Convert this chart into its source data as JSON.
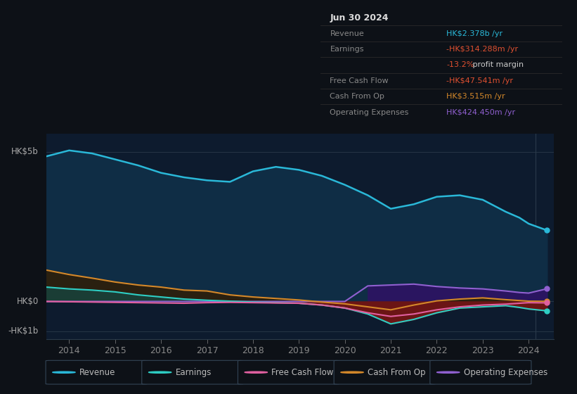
{
  "bg_color": "#0d1117",
  "plot_bg_color": "#0d1b2e",
  "years": [
    2013.5,
    2014,
    2014.5,
    2015,
    2015.5,
    2016,
    2016.5,
    2017,
    2017.5,
    2018,
    2018.5,
    2019,
    2019.5,
    2020,
    2020.5,
    2021,
    2021.5,
    2022,
    2022.5,
    2023,
    2023.5,
    2023.8,
    2024,
    2024.4
  ],
  "revenue": [
    4.85,
    5.05,
    4.95,
    4.75,
    4.55,
    4.3,
    4.15,
    4.05,
    4.0,
    4.35,
    4.5,
    4.4,
    4.2,
    3.9,
    3.55,
    3.1,
    3.25,
    3.5,
    3.55,
    3.4,
    3.0,
    2.8,
    2.6,
    2.378
  ],
  "earnings": [
    0.48,
    0.42,
    0.38,
    0.32,
    0.22,
    0.15,
    0.08,
    0.04,
    0.01,
    -0.02,
    -0.04,
    -0.06,
    -0.12,
    -0.22,
    -0.42,
    -0.75,
    -0.6,
    -0.38,
    -0.22,
    -0.18,
    -0.14,
    -0.2,
    -0.25,
    -0.314
  ],
  "free_cash_flow": [
    0.0,
    -0.01,
    -0.02,
    -0.03,
    -0.04,
    -0.05,
    -0.06,
    -0.04,
    -0.03,
    -0.04,
    -0.05,
    -0.06,
    -0.12,
    -0.22,
    -0.38,
    -0.5,
    -0.42,
    -0.28,
    -0.18,
    -0.12,
    -0.09,
    -0.06,
    -0.04,
    -0.0475
  ],
  "cash_from_op": [
    1.05,
    0.9,
    0.78,
    0.65,
    0.55,
    0.48,
    0.38,
    0.35,
    0.22,
    0.15,
    0.1,
    0.05,
    -0.02,
    -0.08,
    -0.18,
    -0.28,
    -0.12,
    0.02,
    0.08,
    0.12,
    0.06,
    0.03,
    0.01,
    0.003515
  ],
  "operating_expenses": [
    0.0,
    0.0,
    0.0,
    0.0,
    0.0,
    0.0,
    0.0,
    0.0,
    0.0,
    0.0,
    0.0,
    0.0,
    0.0,
    0.0,
    0.52,
    0.55,
    0.58,
    0.5,
    0.45,
    0.42,
    0.35,
    0.3,
    0.28,
    0.42445
  ],
  "colors": {
    "revenue_line": "#2ab8d8",
    "revenue_fill": "#0f2d45",
    "earnings_line": "#2ecec4",
    "earnings_fill_pos": "#1a3d35",
    "earnings_fill_neg": "#6b1515",
    "free_cash_flow_line": "#e060a0",
    "cash_from_op_line": "#d4882a",
    "cash_from_op_fill_pos": "#2a2010",
    "operating_expenses_line": "#9060d0",
    "operating_expenses_fill": "#2a1560"
  },
  "xlim": [
    2013.5,
    2024.55
  ],
  "ylim": [
    -1.25,
    5.6
  ],
  "xticks": [
    2014,
    2015,
    2016,
    2017,
    2018,
    2019,
    2020,
    2021,
    2022,
    2023,
    2024
  ],
  "hlines": [
    5.0,
    0.0,
    -1.0
  ],
  "legend_entries": [
    {
      "label": "Revenue",
      "color": "#2ab8d8"
    },
    {
      "label": "Earnings",
      "color": "#2ecec4"
    },
    {
      "label": "Free Cash Flow",
      "color": "#e060a0"
    },
    {
      "label": "Cash From Op",
      "color": "#d4882a"
    },
    {
      "label": "Operating Expenses",
      "color": "#9060d0"
    }
  ]
}
